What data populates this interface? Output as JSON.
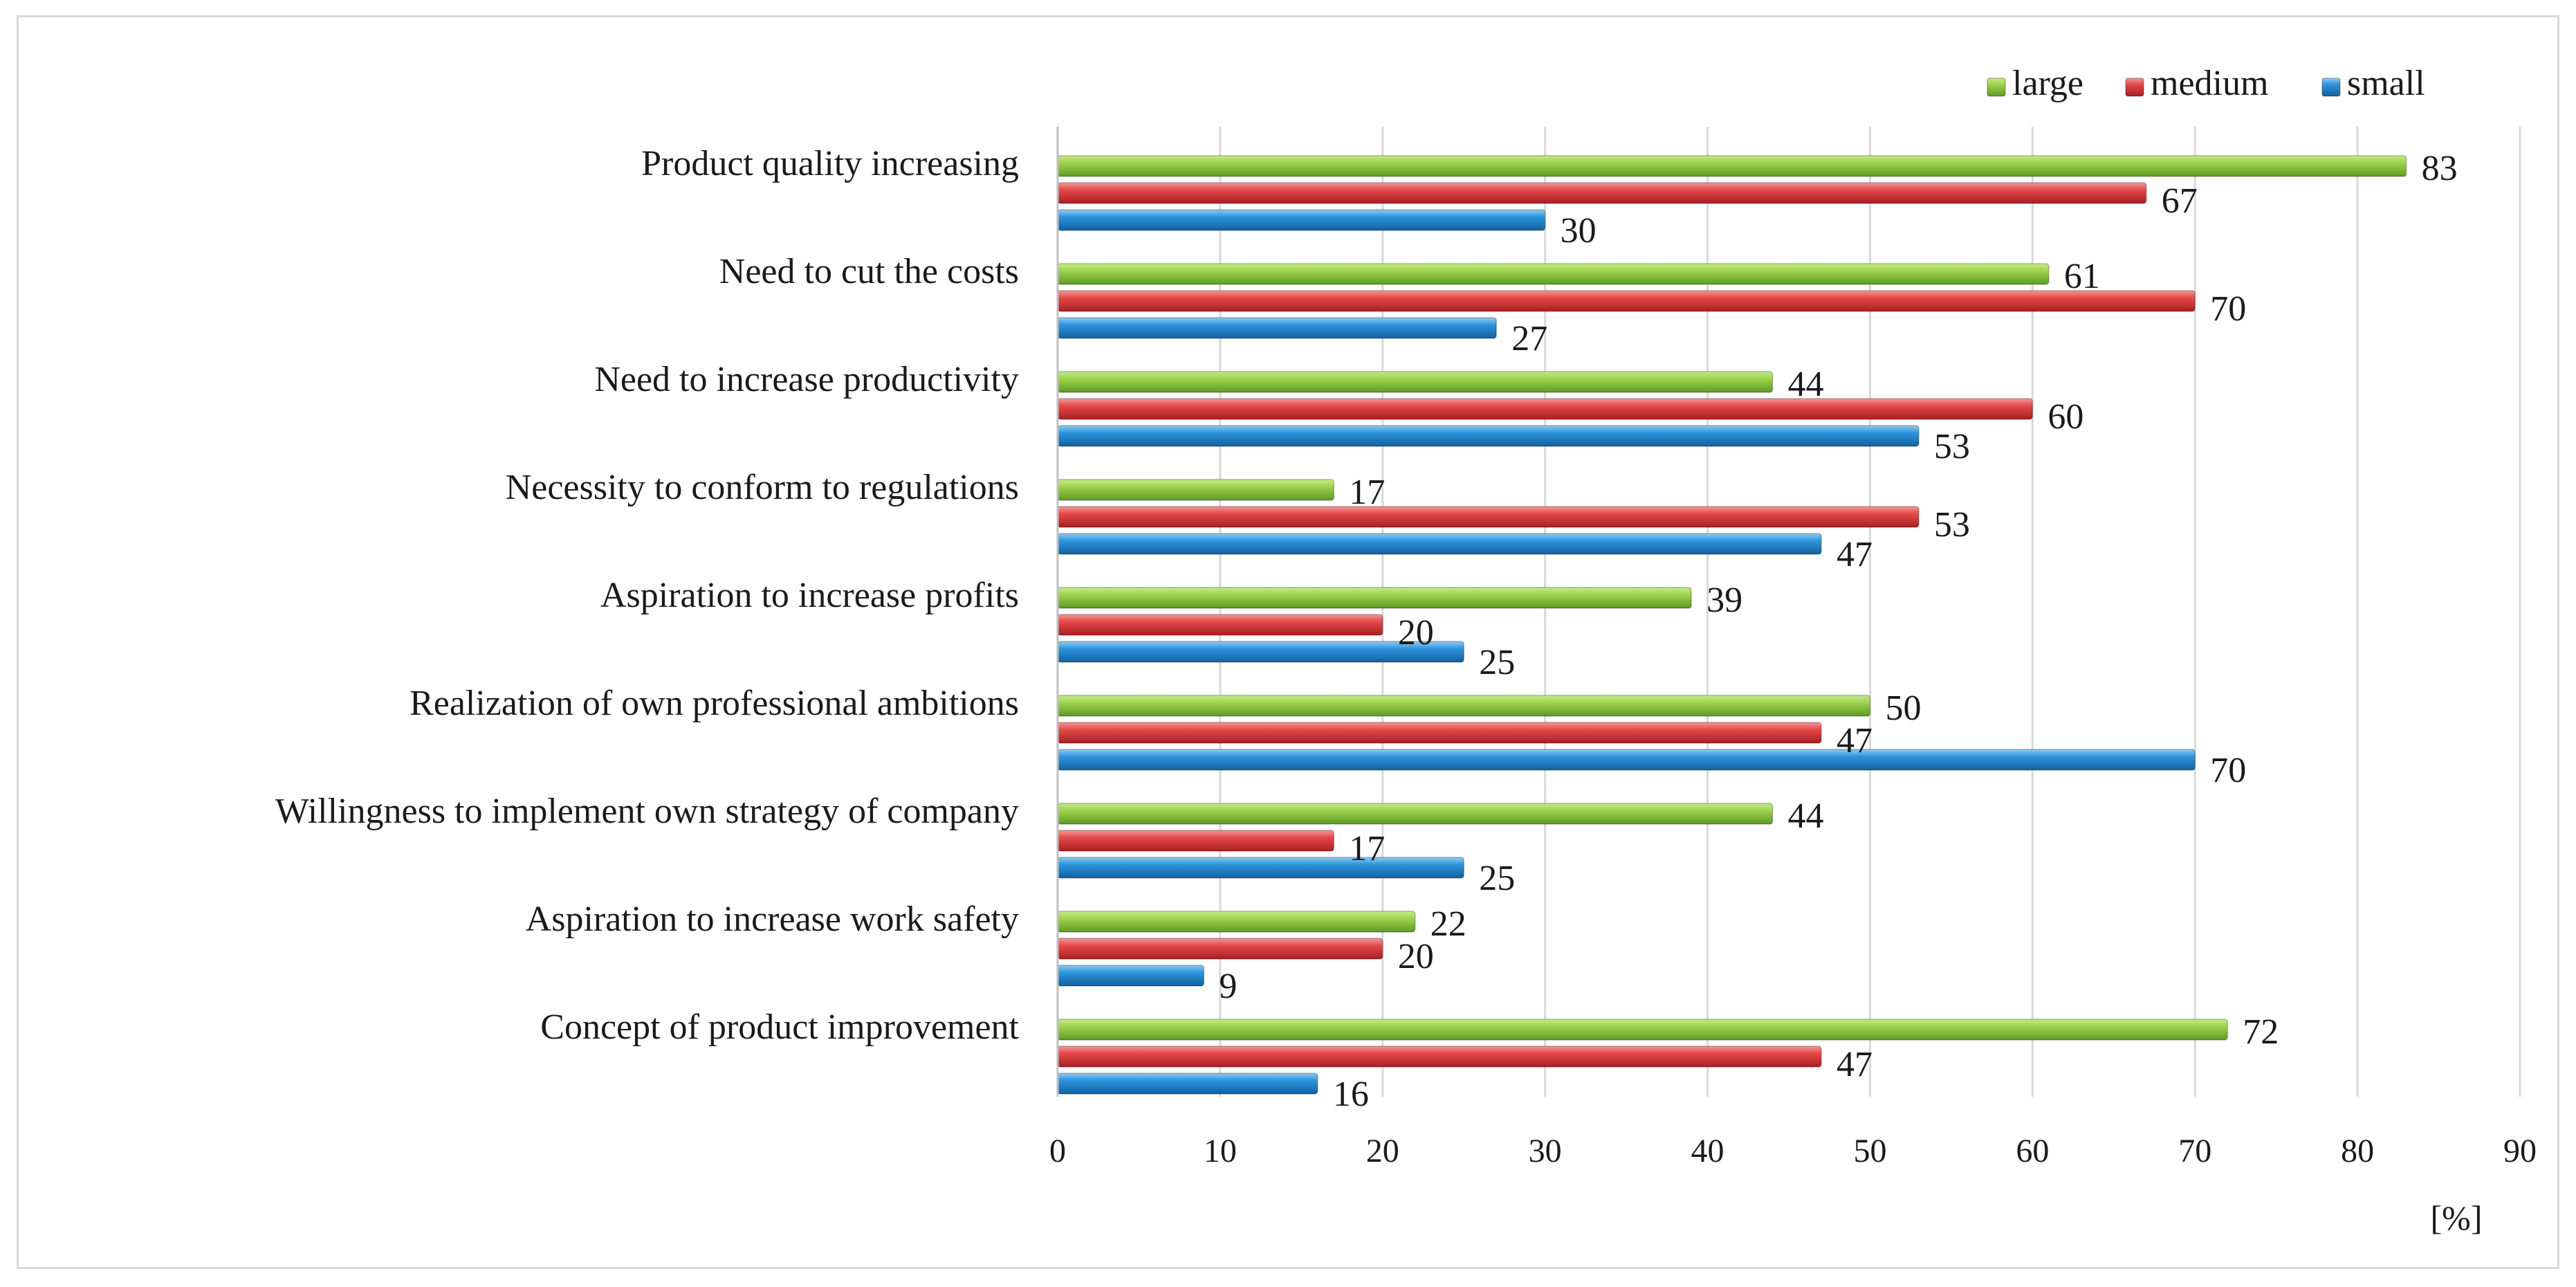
{
  "chart_data": {
    "type": "bar",
    "orientation": "horizontal",
    "categories": [
      "Product quality increasing",
      "Need to cut the costs",
      "Need to increase productivity",
      "Necessity to conform to regulations",
      "Aspiration to increase profits",
      "Realization of own professional ambitions",
      "Willingness to implement own strategy of company",
      "Aspiration to increase work safety",
      "Concept of product improvement"
    ],
    "series": [
      {
        "name": "large",
        "color": "#8cc63e",
        "values": [
          83,
          61,
          44,
          17,
          39,
          50,
          44,
          22,
          72
        ]
      },
      {
        "name": "medium",
        "color": "#e0484a",
        "values": [
          67,
          70,
          60,
          53,
          20,
          47,
          17,
          20,
          47
        ]
      },
      {
        "name": "small",
        "color": "#2b8fd8",
        "values": [
          30,
          27,
          53,
          47,
          25,
          70,
          25,
          9,
          16
        ]
      }
    ],
    "xlim": [
      0,
      90
    ],
    "xticks": [
      0,
      10,
      20,
      30,
      40,
      50,
      60,
      70,
      80,
      90
    ],
    "xlabel": "[%]",
    "grid": true,
    "legend_position": "top-right"
  }
}
